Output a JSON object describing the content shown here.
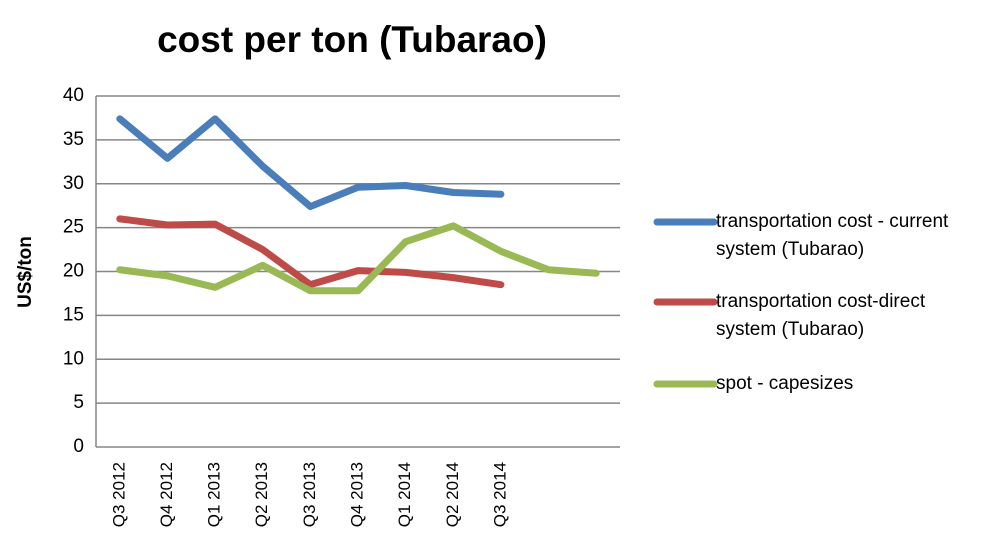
{
  "chart_data": {
    "type": "line",
    "title": "cost per ton (Tubarao)",
    "y_label": "US$/ton",
    "categories": [
      "Q3 2012",
      "Q4 2012",
      "Q1 2013",
      "Q2 2013",
      "Q3 2013",
      "Q4 2013",
      "Q1 2014",
      "Q2 2014",
      "Q3 2014",
      null,
      null
    ],
    "series": [
      {
        "name": "transportation cost - current system (Tubarao)",
        "color": "#4a7ebb",
        "values": [
          37.4,
          32.9,
          37.4,
          32,
          27.4,
          29.6,
          29.8,
          29,
          28.8,
          null,
          null
        ]
      },
      {
        "name": "transportation cost-direct system (Tubarao)",
        "color": "#be4b48",
        "values": [
          26,
          25.3,
          25.4,
          22.5,
          18.5,
          20.1,
          19.9,
          19.3,
          18.5,
          null,
          null
        ]
      },
      {
        "name": "spot - capesizes",
        "color": "#98b954",
        "values": [
          20.2,
          19.5,
          18.2,
          20.7,
          17.8,
          17.8,
          23.4,
          25.2,
          22.3,
          20.2,
          19.8
        ]
      }
    ],
    "ylim": [
      0,
      40
    ],
    "yticks": [
      0,
      5,
      10,
      15,
      20,
      25,
      30,
      35,
      40
    ],
    "grid": true,
    "legend": "right"
  }
}
